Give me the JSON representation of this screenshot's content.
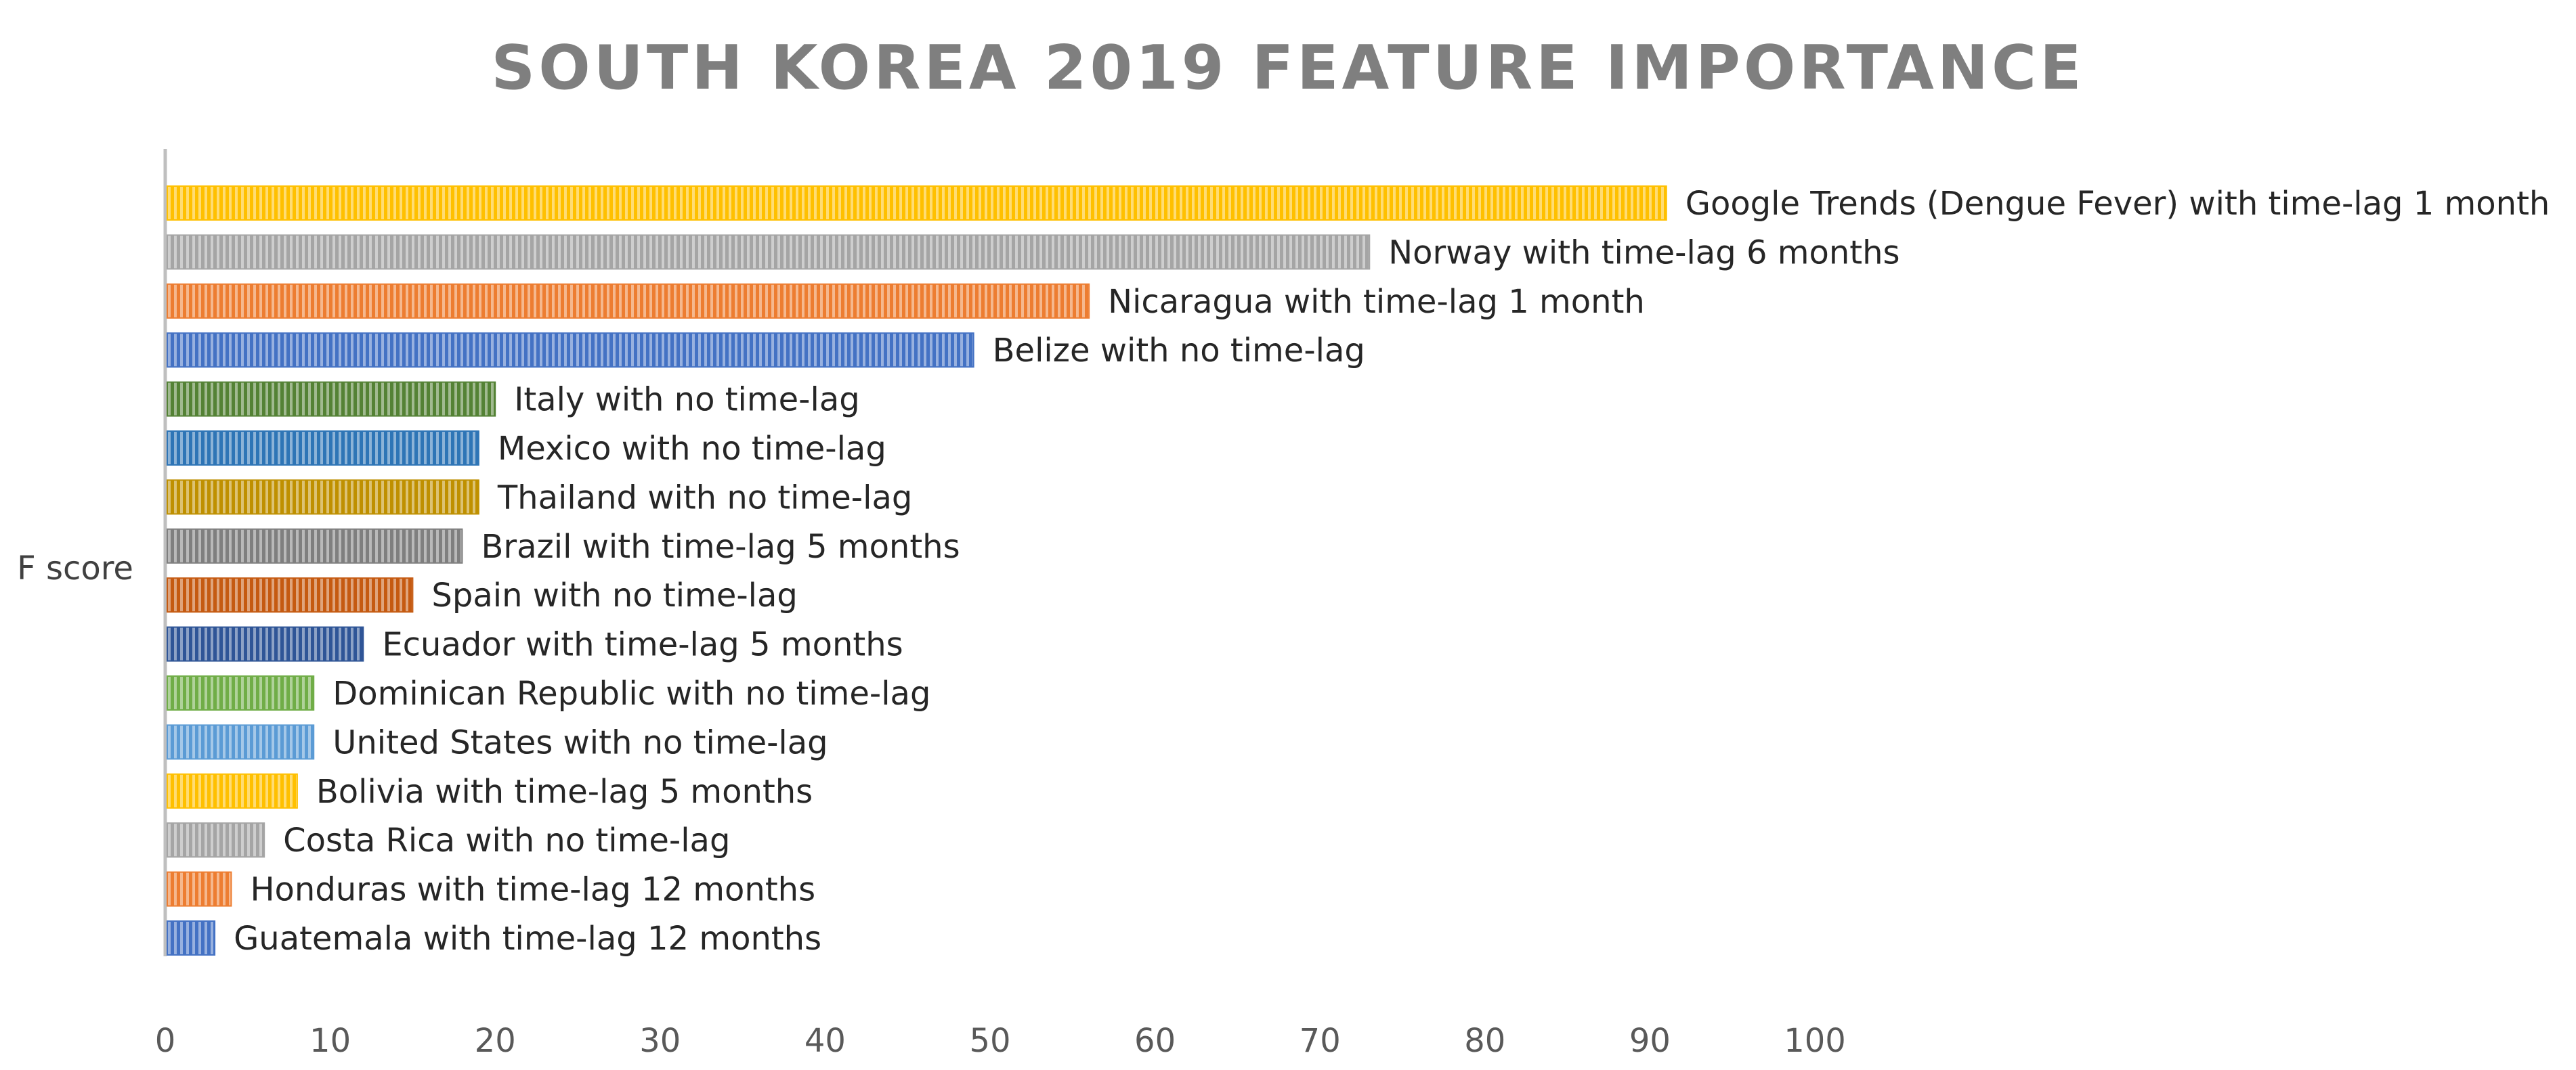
{
  "chart_data": {
    "type": "bar",
    "orientation": "horizontal",
    "title": "SOUTH KOREA 2019 FEATURE IMPORTANCE",
    "xlabel": "",
    "ylabel": "F score",
    "xlim": [
      0,
      100
    ],
    "x_ticks": [
      "0",
      "10",
      "20",
      "30",
      "40",
      "50",
      "60",
      "70",
      "80",
      "90",
      "100"
    ],
    "grid": false,
    "bar_pattern": "vertical-stripes",
    "categories": [
      "Google Trends (Dengue Fever) with time-lag 1 month",
      "Norway with time-lag 6 months",
      "Nicaragua with time-lag 1 month",
      "Belize with no time-lag",
      "Italy with no time-lag",
      "Mexico with no time-lag",
      "Thailand with no time-lag",
      "Brazil with time-lag 5 months",
      "Spain with no time-lag",
      "Ecuador with time-lag 5 months",
      "Dominican Republic with no time-lag",
      "United States with no time-lag",
      "Bolivia with time-lag 5 months",
      "Costa Rica with no time-lag",
      "Honduras with time-lag 12 months",
      "Guatemala with time-lag 12 months"
    ],
    "values": [
      91,
      73,
      56,
      49,
      20,
      19,
      19,
      18,
      15,
      12,
      9,
      9,
      8,
      6,
      4,
      3
    ],
    "colors": [
      "#FFC000",
      "#A5A5A5",
      "#ED7D31",
      "#4472C4",
      "#548235",
      "#2E75B6",
      "#BF9000",
      "#7F7F7F",
      "#C55A11",
      "#2F5597",
      "#70AD47",
      "#5B9BD5",
      "#FFC000",
      "#A5A5A5",
      "#ED7D31",
      "#4472C4"
    ]
  }
}
